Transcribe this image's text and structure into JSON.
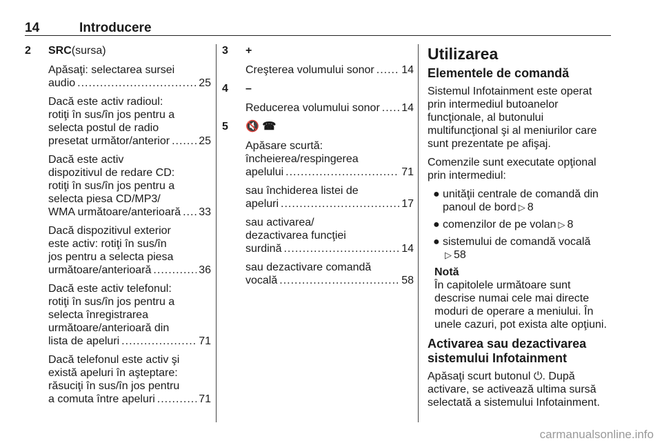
{
  "header": {
    "page": "14",
    "title": "Introducere"
  },
  "col1": [
    {
      "num": "2",
      "label": "SRC",
      "suffix": " (sursa)"
    },
    {
      "lines": [
        {
          "t": "Apăsaţi: selectarea sursei"
        },
        {
          "t": "audio",
          "p": "25"
        }
      ]
    },
    {
      "lines": [
        {
          "t": "Dacă este activ radioul:"
        },
        {
          "t": "rotiţi în sus/în jos pentru a"
        },
        {
          "t": "selecta postul de radio"
        },
        {
          "t": "presetat următor/anterior",
          "p": "25"
        }
      ]
    },
    {
      "lines": [
        {
          "t": "Dacă este activ"
        },
        {
          "t": "dispozitivul de redare CD:"
        },
        {
          "t": "rotiţi în sus/în jos pentru a"
        },
        {
          "t": "selecta piesa CD/MP3/"
        },
        {
          "t": "WMA următoare/anterioară",
          "p": "33"
        }
      ]
    },
    {
      "lines": [
        {
          "t": "Dacă dispozitivul exterior"
        },
        {
          "t": "este activ: rotiţi în sus/în"
        },
        {
          "t": "jos pentru a selecta piesa"
        },
        {
          "t": "următoare/anterioară",
          "p": "36"
        }
      ]
    },
    {
      "lines": [
        {
          "t": "Dacă este activ telefonul:"
        },
        {
          "t": "rotiţi în sus/în jos pentru a"
        },
        {
          "t": "selecta înregistrarea"
        },
        {
          "t": "următoare/anterioară din"
        },
        {
          "t": "lista de apeluri",
          "p": "71"
        }
      ]
    },
    {
      "lines": [
        {
          "t": "Dacă telefonul este activ şi"
        },
        {
          "t": "există apeluri în aşteptare:"
        },
        {
          "t": "răsuciţi în sus/în jos pentru"
        },
        {
          "t": "a comuta între apeluri",
          "p": "71"
        }
      ]
    }
  ],
  "col2": [
    {
      "num": "3",
      "label": "+"
    },
    {
      "lines": [
        {
          "t": "Creşterea volumului sonor",
          "p": "14"
        }
      ]
    },
    {
      "num": "4",
      "label": "–"
    },
    {
      "lines": [
        {
          "t": "Reducerea volumului sonor",
          "p": "14"
        }
      ]
    },
    {
      "num": "5",
      "label": "🔇 ☎"
    },
    {
      "lines": [
        {
          "t": "Apăsare scurtă:"
        },
        {
          "t": "încheierea/respingerea"
        },
        {
          "t": "apelului",
          "p": "71"
        }
      ]
    },
    {
      "lines": [
        {
          "t": "sau închiderea listei de"
        },
        {
          "t": "apeluri",
          "p": "17"
        }
      ]
    },
    {
      "lines": [
        {
          "t": "sau activarea/"
        },
        {
          "t": "dezactivarea funcţiei"
        },
        {
          "t": "surdină",
          "p": "14"
        }
      ]
    },
    {
      "lines": [
        {
          "t": "sau dezactivare comandă"
        },
        {
          "t": "vocală",
          "p": "58"
        }
      ]
    }
  ],
  "col3": {
    "title": "Utilizarea",
    "subtitle": "Elementele de comandă",
    "intro": [
      "Sistemul Infotainment este operat",
      "prin intermediul butoanelor",
      "funcţionale, al butonului",
      "multifuncţional şi al meniurilor care",
      "sunt prezentate pe afişaj."
    ],
    "intro2": [
      "Comenzile sunt executate opţional",
      "prin intermediul:"
    ],
    "bullets": [
      {
        "lines": [
          "unităţii centrale de comandă din",
          "panoul de bord"
        ],
        "ref": "8"
      },
      {
        "lines": [
          "comenzilor de pe volan"
        ],
        "ref": "8"
      },
      {
        "lines": [
          "sistemului de comandă vocală",
          ""
        ],
        "ref": "58"
      }
    ],
    "note_title": "Notă",
    "note": [
      "În capitolele următoare sunt",
      "descrise numai cele mai directe",
      "moduri de operare a meniului. În",
      "unele cazuri, pot exista alte opţiuni."
    ],
    "heading2": [
      "Activarea sau dezactivarea",
      "sistemului Infotainment"
    ],
    "final": [
      "Apăsaţi scurt butonul ⏻. După",
      "activare, se activează ultima sursă",
      "selectată a sistemului Infotainment."
    ]
  },
  "watermark": "carmanualsonline.info"
}
